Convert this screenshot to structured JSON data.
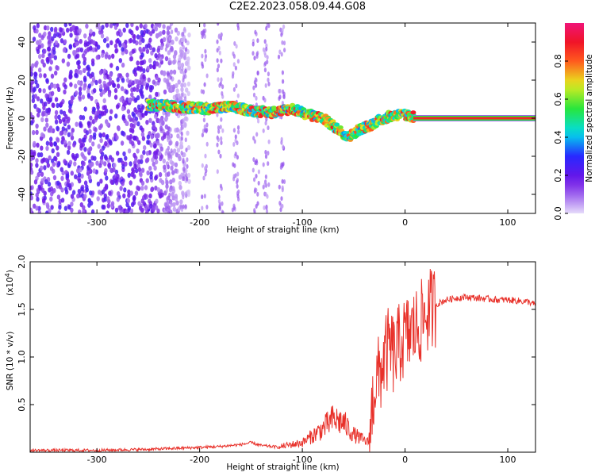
{
  "title": "C2E2.2023.058.09.44.G08",
  "chart_data": [
    {
      "type": "heatmap",
      "title": "",
      "xlabel": "Height of straight line (km)",
      "ylabel": "Frequency (Hz)",
      "xlim": [
        -365,
        127
      ],
      "ylim": [
        -50,
        50
      ],
      "xticks": [
        -300,
        -200,
        -100,
        0,
        100
      ],
      "xtick_labels": [
        "-300",
        "-200",
        "-100",
        "0",
        "100"
      ],
      "yticks": [
        -40,
        -20,
        0,
        20,
        40
      ],
      "ytick_labels": [
        "-40",
        "-20",
        "0",
        "20",
        "40"
      ],
      "colorbar": {
        "label": "Normalized spectral amplitude",
        "range": [
          0.0,
          1.0
        ],
        "ticks": [
          0.0,
          0.2,
          0.4,
          0.6,
          0.8
        ],
        "tick_labels": [
          "0.0",
          "0.2",
          "0.4",
          "0.6",
          "0.8"
        ],
        "colormap": "rainbow (purple-blue-cyan-green-yellow-red-magenta)"
      },
      "noise_region": {
        "x_range": [
          -365,
          -250
        ],
        "amplitude": 0.15
      },
      "ridge": {
        "x": [
          -250,
          -220,
          -190,
          -170,
          -150,
          -130,
          -110,
          -95,
          -80,
          -65,
          -55,
          -45,
          -35,
          -25,
          -15,
          -5,
          5,
          127
        ],
        "y": [
          7,
          6,
          5,
          6,
          4,
          3,
          5,
          2,
          0,
          -6,
          -10,
          -6,
          -4,
          -1,
          1,
          2,
          1,
          0
        ]
      },
      "grid": false
    },
    {
      "type": "line",
      "title": "",
      "xlabel": "Height of straight line (km)",
      "ylabel": "SNR (10 * v/v)",
      "yscale_label": "(x10",
      "yscale_exponent": "4",
      "xlim": [
        -365,
        127
      ],
      "ylim": [
        0,
        2.0
      ],
      "xticks": [
        -300,
        -200,
        -100,
        0,
        100
      ],
      "xtick_labels": [
        "-300",
        "-200",
        "-100",
        "0",
        "100"
      ],
      "yticks": [
        0.5,
        1.0,
        1.5,
        2.0
      ],
      "ytick_labels": [
        "0.5",
        "1.0",
        "1.5",
        "2.0"
      ],
      "color": "#e8312a",
      "series": [
        {
          "x": [
            -365,
            -300,
            -250,
            -200,
            -180,
            -160,
            -150,
            -140,
            -120,
            -100,
            -90,
            -80,
            -70,
            -60,
            -50,
            -40,
            -35,
            -30,
            -25,
            -20,
            -15,
            -10,
            -5,
            0,
            5,
            10,
            15,
            20,
            30,
            40,
            50,
            60,
            70,
            80,
            90,
            100,
            110,
            120,
            127
          ],
          "y": [
            0.02,
            0.02,
            0.03,
            0.05,
            0.06,
            0.08,
            0.1,
            0.07,
            0.05,
            0.08,
            0.14,
            0.2,
            0.28,
            0.25,
            0.15,
            0.1,
            0.08,
            0.7,
            0.8,
            1.0,
            1.1,
            1.0,
            1.15,
            1.2,
            1.25,
            1.3,
            1.35,
            1.45,
            1.55,
            1.6,
            1.62,
            1.63,
            1.62,
            1.61,
            1.6,
            1.6,
            1.59,
            1.58,
            1.55
          ]
        }
      ],
      "grid": false
    }
  ]
}
